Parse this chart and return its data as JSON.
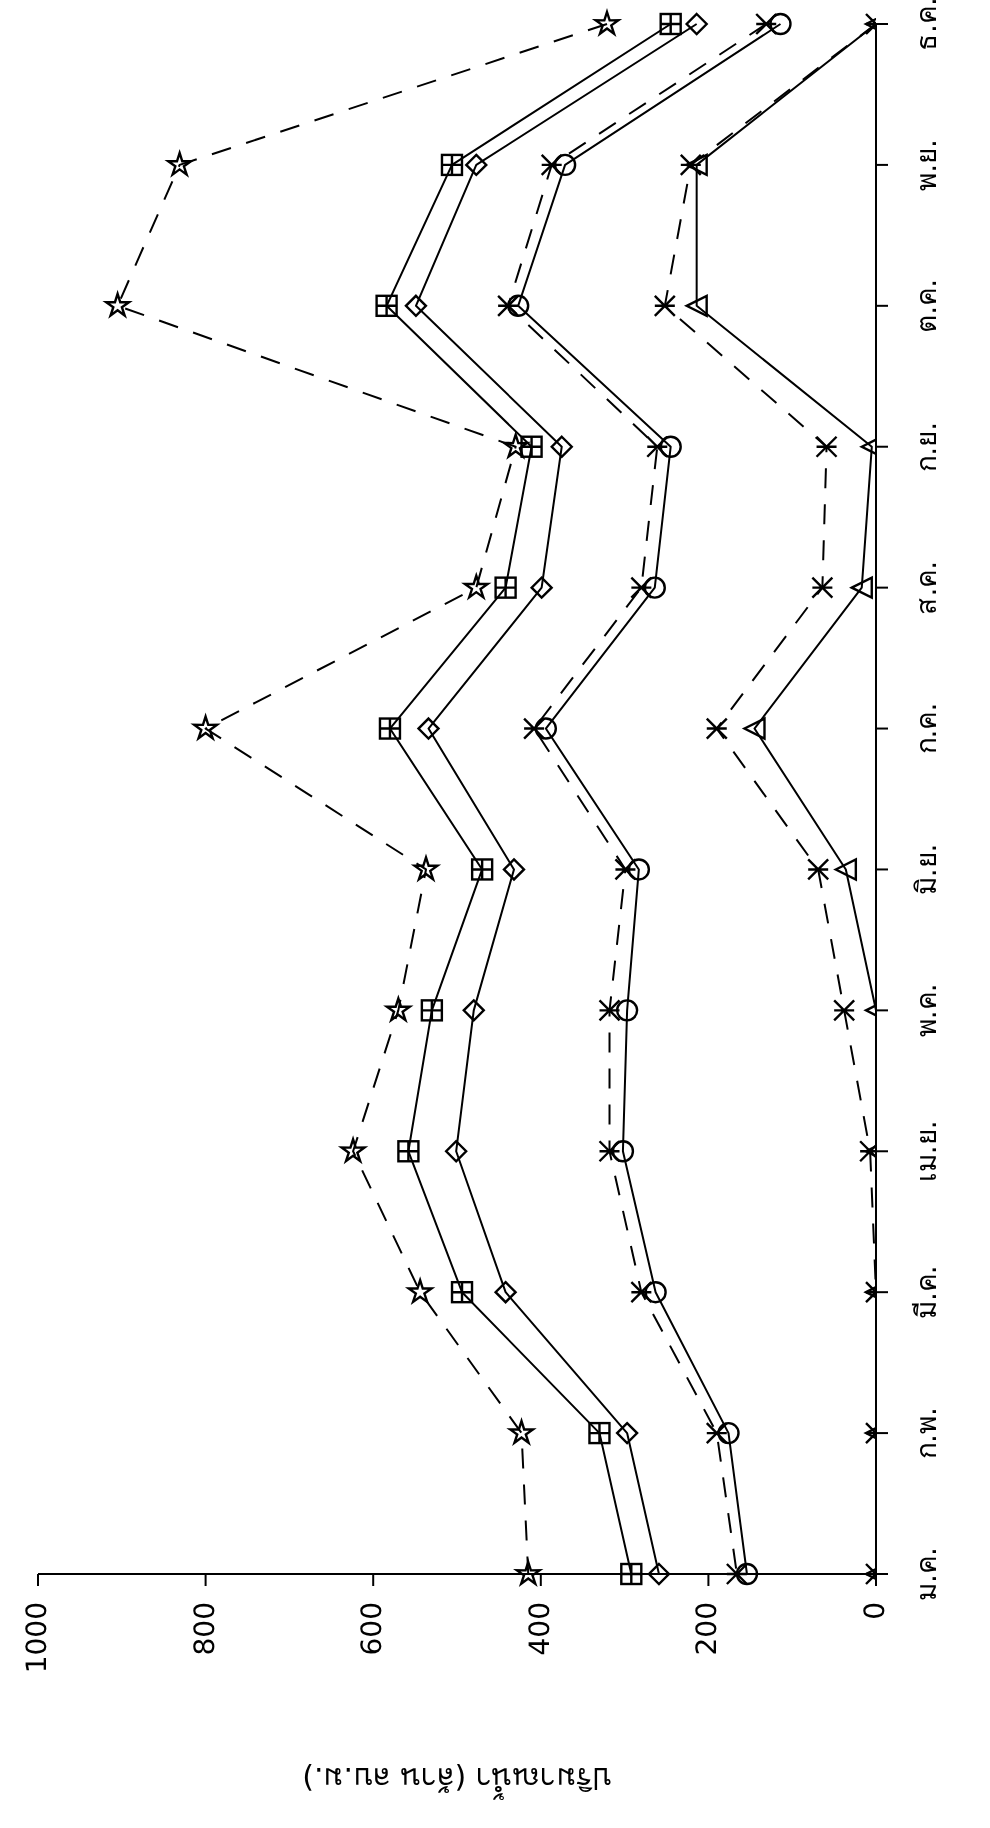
{
  "chart_data": {
    "type": "line",
    "orientation": "horizontal",
    "xlabel": "ปริมาณน้ำ (ล้าน ลบ.ม.)",
    "categories": [
      "ธ.ค.",
      "พ.ย.",
      "ต.ค.",
      "ก.ย.",
      "ส.ค.",
      "ก.ค.",
      "มิ.ย.",
      "พ.ค.",
      "เม.ย.",
      "มี.ค.",
      "ก.พ.",
      "ม.ค."
    ],
    "grid": false,
    "legend": false,
    "xlim": [
      1000,
      0
    ],
    "xticks": [
      1000,
      800,
      600,
      400,
      200,
      0
    ],
    "series": [
      {
        "color": "#000000",
        "marker": "star",
        "line_style": "dashed",
        "values": [
          321,
          831,
          905,
          430,
          477,
          800,
          537,
          570,
          624,
          544,
          423,
          415
        ]
      },
      {
        "color": "#000000",
        "marker": "square",
        "line_style": "solid",
        "values": [
          245,
          506,
          584,
          411,
          442,
          580,
          470,
          530,
          558,
          494,
          330,
          292
        ]
      },
      {
        "color": "#000000",
        "marker": "diamond",
        "line_style": "solid",
        "values": [
          214,
          477,
          549,
          375,
          399,
          534,
          432,
          480,
          501,
          442,
          297,
          259
        ]
      },
      {
        "color": "#000000",
        "marker": "cross",
        "line_style": "dashed",
        "values": [
          131,
          387,
          439,
          261,
          280,
          408,
          299,
          318,
          318,
          280,
          190,
          166
        ]
      },
      {
        "color": "#000000",
        "marker": "circle",
        "line_style": "solid",
        "values": [
          114,
          371,
          427,
          245,
          264,
          394,
          283,
          297,
          302,
          263,
          176,
          154
        ]
      },
      {
        "color": "#000000",
        "marker": "cross",
        "line_style": "dashed",
        "values": [
          0,
          221,
          252,
          59,
          64,
          190,
          69,
          38,
          7,
          0,
          0,
          0
        ]
      },
      {
        "color": "#000000",
        "marker": "triangle",
        "line_style": "solid",
        "values": [
          0,
          214,
          214,
          5,
          17,
          145,
          36,
          0,
          0,
          0,
          0,
          0
        ]
      }
    ]
  }
}
